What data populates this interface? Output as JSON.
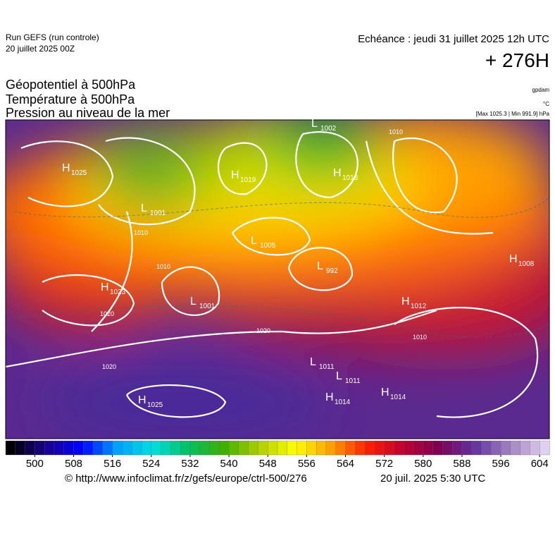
{
  "header": {
    "run": "Run GEFS (run controle)",
    "date": "20 juillet 2025 00Z",
    "echeance": "Echéance : jeudi 31 juillet 2025 12h UTC",
    "lead": "+ 276H",
    "layers": [
      "Géopotentiel à 500hPa",
      "Température à 500hPa",
      "Pression au niveau de la mer"
    ],
    "unit_geo": "gpdam",
    "unit_temp": "°C",
    "range": "[Max 1025.3 | Min 991.9] hPa"
  },
  "map": {
    "centers": [
      {
        "letter": "H",
        "value": 1025
      },
      {
        "letter": "L",
        "value": 1002
      },
      {
        "letter": "H",
        "value": 1019
      },
      {
        "letter": "H",
        "value": 1013
      },
      {
        "letter": "L",
        "value": 1001
      },
      {
        "letter": "L",
        "value": 1005
      },
      {
        "letter": "L",
        "value": 992
      },
      {
        "letter": "H",
        "value": 1023
      },
      {
        "letter": "L",
        "value": 1001
      },
      {
        "letter": "H",
        "value": 1012
      },
      {
        "letter": "H",
        "value": 1008
      },
      {
        "letter": "L",
        "value": 1011
      },
      {
        "letter": "L",
        "value": 1011
      },
      {
        "letter": "H",
        "value": 1014
      },
      {
        "letter": "H",
        "value": 1014
      },
      {
        "letter": "H",
        "value": 1025
      }
    ],
    "isobars": [
      1010,
      1010,
      1010,
      1010,
      1020,
      1020,
      1020
    ]
  },
  "colorbar": {
    "lim": [
      494,
      606
    ],
    "stops": [
      "#000000",
      "#1a0090",
      "#0000ff",
      "#00a0ff",
      "#00e0e0",
      "#00c060",
      "#40b000",
      "#b0d000",
      "#ffff00",
      "#ffa000",
      "#ff2000",
      "#c00030",
      "#800050",
      "#6030a0",
      "#a080c0",
      "#e0d0f0"
    ],
    "ticks": [
      500,
      508,
      516,
      524,
      532,
      540,
      548,
      556,
      564,
      572,
      580,
      588,
      596,
      604
    ]
  },
  "footer": {
    "url": "© http://www.infoclimat.fr/z/gefs/europe/ctrl-500/276",
    "stamp": "20 juil. 2025  5:30 UTC"
  }
}
